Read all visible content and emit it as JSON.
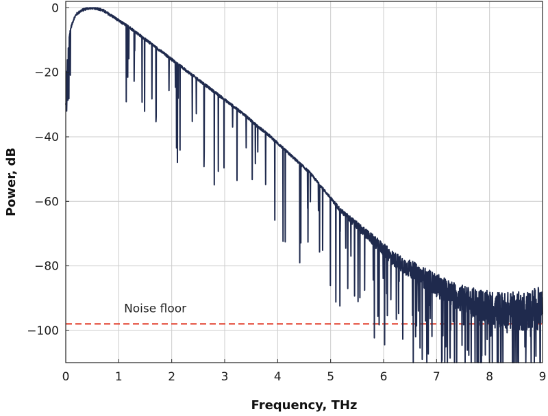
{
  "chart_data": {
    "type": "line",
    "title": "",
    "xlabel": "Frequency, THz",
    "ylabel": "Power, dB",
    "xlim": [
      0,
      9
    ],
    "ylim": [
      -110,
      2
    ],
    "xticks": [
      0,
      1,
      2,
      3,
      4,
      5,
      6,
      7,
      8,
      9
    ],
    "yticks": [
      0,
      -20,
      -40,
      -60,
      -80,
      -100
    ],
    "grid": true,
    "legend": "none",
    "colors": {
      "spectrum": "#1f2a4d",
      "noise_floor": "#e0321e",
      "grid": "#cccccc"
    },
    "series": [
      {
        "x": [
          0,
          0.05,
          0.1,
          0.15,
          0.2,
          0.3,
          0.4,
          0.5,
          0.6,
          0.7,
          0.8,
          0.9,
          1.0,
          1.2,
          1.4,
          1.6,
          1.8,
          2.0,
          2.2,
          2.4,
          2.6,
          2.8,
          3.0,
          3.2,
          3.4,
          3.6,
          3.8,
          4.0,
          4.2,
          4.4,
          4.6,
          4.8,
          5.0,
          5.2,
          5.4,
          5.6,
          5.8,
          6.0,
          6.2,
          6.4,
          6.6,
          6.8,
          7.0,
          7.2,
          7.4,
          7.6,
          7.8,
          8.0,
          8.2,
          8.4,
          8.6,
          8.8,
          9.0
        ],
        "y": [
          -17,
          -10,
          -6,
          -3.5,
          -2,
          -0.8,
          -0.2,
          0,
          -0.2,
          -0.8,
          -1.8,
          -2.8,
          -4,
          -6,
          -8.5,
          -11,
          -13.5,
          -16,
          -18.5,
          -21,
          -23.5,
          -26,
          -28.5,
          -31,
          -33.5,
          -36.5,
          -39,
          -42,
          -45,
          -48,
          -51,
          -55,
          -59,
          -63,
          -66,
          -69,
          -72,
          -75,
          -78,
          -80,
          -82,
          -84,
          -86,
          -88,
          -89.5,
          -91,
          -92,
          -93,
          -93.5,
          -94,
          -94,
          -93.5,
          -93
        ]
      }
    ],
    "annotations": [
      {
        "text": "Noise floor",
        "y": -98,
        "style": "dashed"
      }
    ]
  }
}
